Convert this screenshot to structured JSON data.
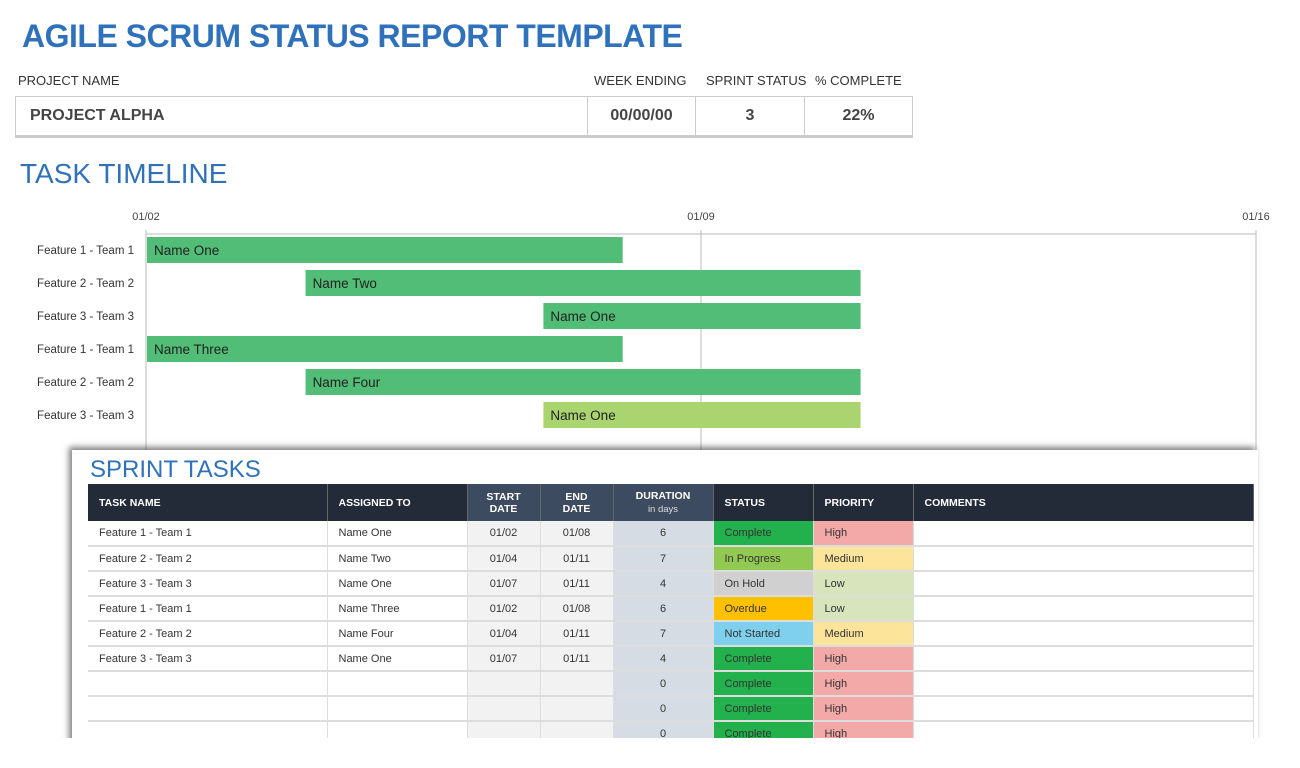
{
  "title": "AGILE SCRUM STATUS REPORT TEMPLATE",
  "project": {
    "labels": {
      "name": "PROJECT NAME",
      "week": "WEEK ENDING",
      "sprint": "SPRINT STATUS",
      "pct": "% COMPLETE"
    },
    "name": "PROJECT ALPHA",
    "week": "00/00/00",
    "sprint": "3",
    "pct": "22%"
  },
  "timeline_title": "TASK TIMELINE",
  "chart_data": {
    "type": "bar",
    "orientation": "gantt",
    "x_ticks": [
      "01/02",
      "01/09",
      "01/16"
    ],
    "xlim": [
      "01/02",
      "01/16"
    ],
    "grid": true,
    "tasks": [
      {
        "category": "Feature 1 - Team 1",
        "label": "Name One",
        "start": "01/02",
        "end": "01/08",
        "color": "#52bd76"
      },
      {
        "category": "Feature 2 - Team 2",
        "label": "Name Two",
        "start": "01/04",
        "end": "01/11",
        "color": "#52bd76"
      },
      {
        "category": "Feature 3 - Team 3",
        "label": "Name One",
        "start": "01/07",
        "end": "01/11",
        "color": "#52bd76"
      },
      {
        "category": "Feature 1 - Team 1",
        "label": "Name Three",
        "start": "01/02",
        "end": "01/08",
        "color": "#52bd76"
      },
      {
        "category": "Feature 2 - Team 2",
        "label": "Name Four",
        "start": "01/04",
        "end": "01/11",
        "color": "#52bd76"
      },
      {
        "category": "Feature 3 - Team 3",
        "label": "Name One",
        "start": "01/07",
        "end": "01/11",
        "color": "#a9d46f"
      }
    ]
  },
  "sprint": {
    "title": "SPRINT TASKS",
    "headers": {
      "task": "TASK NAME",
      "assigned": "ASSIGNED TO",
      "start1": "START",
      "start2": "DATE",
      "end1": "END",
      "end2": "DATE",
      "dur": "DURATION",
      "dur_sub": "in days",
      "status": "STATUS",
      "priority": "PRIORITY",
      "comments": "COMMENTS"
    },
    "rows": [
      [
        "Feature 1 - Team 1",
        "Name One",
        "01/02",
        "01/08",
        "6",
        "Complete",
        "High",
        ""
      ],
      [
        "Feature 2 - Team 2",
        "Name Two",
        "01/04",
        "01/11",
        "7",
        "In Progress",
        "Medium",
        ""
      ],
      [
        "Feature 3 - Team 3",
        "Name One",
        "01/07",
        "01/11",
        "4",
        "On Hold",
        "Low",
        ""
      ],
      [
        "Feature 1 - Team 1",
        "Name Three",
        "01/02",
        "01/08",
        "6",
        "Overdue",
        "Low",
        ""
      ],
      [
        "Feature 2 - Team 2",
        "Name Four",
        "01/04",
        "01/11",
        "7",
        "Not Started",
        "Medium",
        ""
      ],
      [
        "Feature 3 - Team 3",
        "Name One",
        "01/07",
        "01/11",
        "4",
        "Complete",
        "High",
        ""
      ],
      [
        "",
        "",
        "",
        "",
        "0",
        "Complete",
        "High",
        ""
      ],
      [
        "",
        "",
        "",
        "",
        "0",
        "Complete",
        "High",
        ""
      ],
      [
        "",
        "",
        "",
        "",
        "0",
        "Complete",
        "High",
        ""
      ]
    ]
  },
  "status_colors": {
    "Complete": "#22b14c",
    "In Progress": "#92c952",
    "On Hold": "#d0d0d0",
    "Overdue": "#ffc000",
    "Not Started": "#7fd0ed"
  },
  "priority_colors": {
    "High": "#f4a9a9",
    "Medium": "#fce49a",
    "Low": "#d8e4bc"
  }
}
